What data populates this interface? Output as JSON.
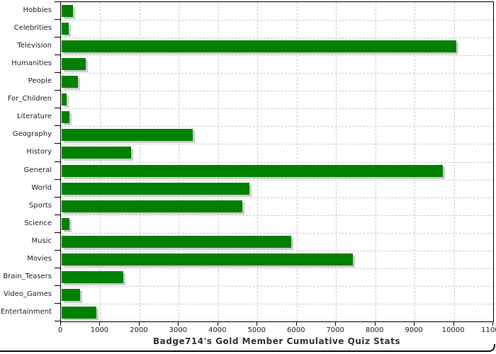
{
  "chart_data": {
    "type": "bar",
    "orientation": "horizontal",
    "title": "Badge714's Gold Member Cumulative Quiz Stats",
    "categories": [
      "Hobbies",
      "Celebrities",
      "Television",
      "Humanities",
      "People",
      "For_Children",
      "Literature",
      "Geography",
      "History",
      "General",
      "World",
      "Sports",
      "Science",
      "Music",
      "Movies",
      "Brain_Teasers",
      "Video_Games",
      "Entertainment"
    ],
    "values": [
      285,
      175,
      10050,
      610,
      415,
      125,
      190,
      3340,
      1770,
      9700,
      4780,
      4590,
      205,
      5850,
      7410,
      1570,
      460,
      880
    ],
    "xlim": [
      0,
      11000
    ],
    "x_tick_step": 1000,
    "x_tick_labels": [
      "0",
      "1000",
      "2000",
      "3000",
      "4000",
      "5000",
      "6000",
      "7000",
      "8000",
      "9000",
      "10000",
      "11000"
    ],
    "grid": "dashed",
    "legend": "none",
    "bar_color": "#008000",
    "bar_shadow_color": "#cccccc",
    "grid_color": "#cccccc",
    "axis_color": "#000000",
    "title_color": "#333333",
    "tick_label_color": "#222222"
  }
}
